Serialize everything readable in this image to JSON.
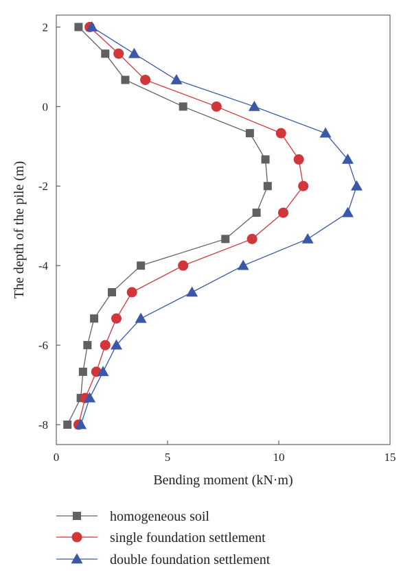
{
  "chart_data": {
    "type": "line",
    "xlabel": "Bending moment (kN·m)",
    "ylabel": "The depth of the pile (m)",
    "xlim": [
      0,
      15
    ],
    "ylim": [
      -8.5,
      2.3
    ],
    "xticks": [
      0,
      5,
      10,
      15
    ],
    "yticks": [
      2,
      0,
      -2,
      -4,
      -6,
      -8
    ],
    "grid": false,
    "legend_position": "bottom",
    "series": [
      {
        "name": "homogeneous soil",
        "color": "#606060",
        "marker": "square",
        "x": [
          1.0,
          2.2,
          3.1,
          5.7,
          8.7,
          9.4,
          9.5,
          9.0,
          7.6,
          3.8,
          2.5,
          1.7,
          1.4,
          1.2,
          1.1,
          0.5
        ],
        "y": [
          2.0,
          1.33,
          0.67,
          0.0,
          -0.67,
          -1.33,
          -2.0,
          -2.67,
          -3.33,
          -4.0,
          -4.67,
          -5.33,
          -6.0,
          -6.67,
          -7.33,
          -8.0
        ]
      },
      {
        "name": "single foundation settlement",
        "color": "#d0363a",
        "marker": "circle",
        "x": [
          1.5,
          2.8,
          4.0,
          7.2,
          10.1,
          10.9,
          11.1,
          10.2,
          8.8,
          5.7,
          3.4,
          2.7,
          2.2,
          1.8,
          1.3,
          1.0
        ],
        "y": [
          2.0,
          1.33,
          0.67,
          0.0,
          -0.67,
          -1.33,
          -2.0,
          -2.67,
          -3.33,
          -4.0,
          -4.67,
          -5.33,
          -6.0,
          -6.67,
          -7.33,
          -8.0
        ]
      },
      {
        "name": "double foundation settlement",
        "color": "#3b57a8",
        "marker": "triangle",
        "x": [
          1.6,
          3.5,
          5.4,
          8.9,
          12.1,
          13.1,
          13.5,
          13.1,
          11.3,
          8.4,
          6.1,
          3.8,
          2.7,
          2.1,
          1.5,
          1.1
        ],
        "y": [
          2.0,
          1.33,
          0.67,
          0.0,
          -0.67,
          -1.33,
          -2.0,
          -2.67,
          -3.33,
          -4.0,
          -4.67,
          -5.33,
          -6.0,
          -6.67,
          -7.33,
          -8.0
        ]
      }
    ]
  }
}
